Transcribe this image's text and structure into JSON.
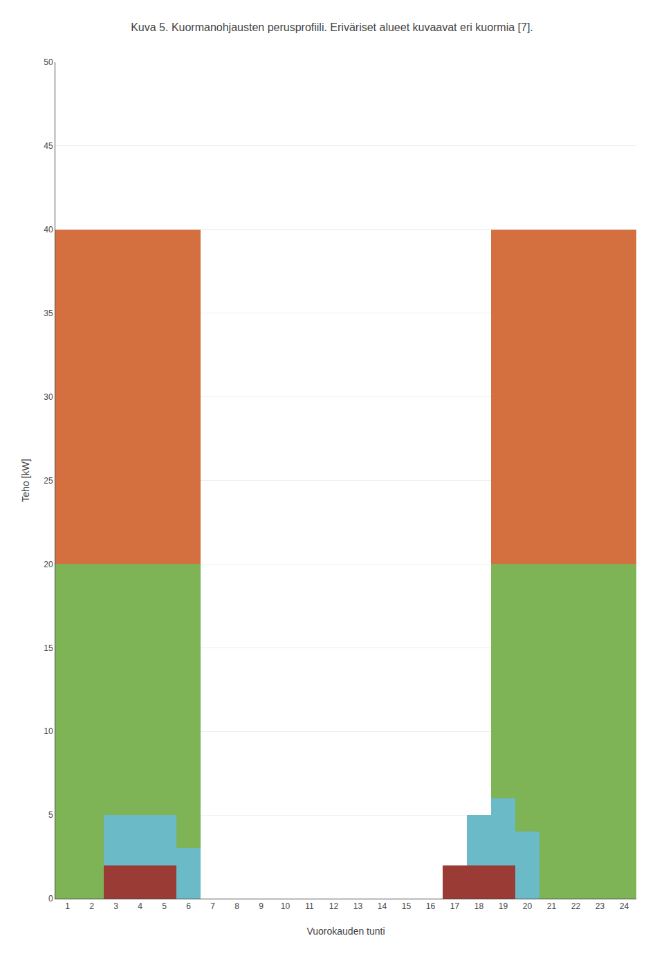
{
  "chart_data": [
    {
      "type": "area",
      "stacked": true,
      "title": "Kuva 5. Kuormanohjausten perusprofiili. Eriväriset alueet kuvaavat eri kuormia [7].",
      "xlabel": "Vuorokauden tunti",
      "ylabel": "Teho [kW]",
      "x": [
        1,
        2,
        3,
        4,
        5,
        6,
        7,
        8,
        9,
        10,
        11,
        12,
        13,
        14,
        15,
        16,
        17,
        18,
        19,
        20,
        21,
        22,
        23,
        24
      ],
      "series": [
        {
          "color": "#7EB356",
          "values": [
            20,
            20,
            20,
            20,
            20,
            20,
            0,
            0,
            0,
            0,
            0,
            0,
            0,
            0,
            0,
            0,
            0,
            0,
            20,
            20,
            20,
            20,
            20,
            20
          ]
        },
        {
          "color": "#D47040",
          "values": [
            20,
            20,
            20,
            20,
            20,
            20,
            0,
            0,
            0,
            0,
            0,
            0,
            0,
            0,
            0,
            0,
            0,
            0,
            20,
            20,
            20,
            20,
            20,
            20
          ]
        }
      ],
      "xlim": [
        0.5,
        24.5
      ],
      "xticks": [
        1,
        2,
        3,
        4,
        5,
        6,
        7,
        8,
        9,
        10,
        11,
        12,
        13,
        14,
        15,
        16,
        17,
        18,
        19,
        20,
        21,
        22,
        23,
        24
      ],
      "ylim": [
        0,
        50
      ],
      "yticks": [
        0,
        5,
        10,
        15,
        20,
        25,
        30,
        35,
        40,
        45,
        50
      ],
      "grid": "y"
    },
    {
      "type": "area",
      "stacked": true,
      "x": [
        1,
        2,
        3,
        4,
        5,
        6,
        7,
        8,
        9,
        10,
        11,
        12,
        13,
        14,
        15,
        16,
        17,
        18,
        19,
        20,
        21,
        22,
        23,
        24
      ],
      "series": [
        {
          "color": "#9B3B35",
          "values": [
            0,
            0,
            2,
            2,
            2,
            0,
            0,
            0,
            0,
            0,
            0,
            0,
            0,
            0,
            0,
            0,
            2,
            2,
            2,
            0,
            0,
            0,
            0,
            0
          ]
        },
        {
          "color": "#6ABAC8",
          "values": [
            0,
            0,
            3,
            3,
            3,
            3,
            0,
            0,
            0,
            0,
            0,
            0,
            0,
            0,
            0,
            0,
            0,
            3,
            4,
            4,
            0,
            0,
            0,
            0
          ]
        }
      ]
    }
  ]
}
